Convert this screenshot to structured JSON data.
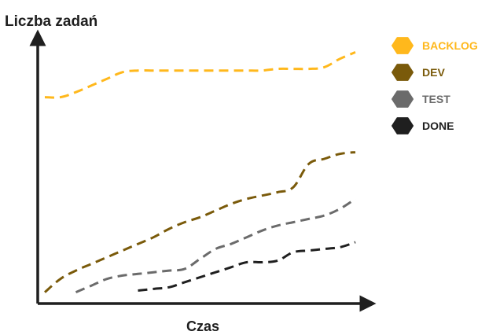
{
  "chart_data": {
    "type": "line",
    "title": "",
    "ylabel": "Liczba zadań",
    "xlabel": "Czas",
    "x": [
      0,
      1,
      2,
      3,
      4,
      5,
      6,
      7,
      8,
      9,
      10,
      11,
      12,
      13,
      14,
      15,
      16,
      17,
      18,
      19,
      20
    ],
    "xlim": [
      0,
      20
    ],
    "ylim": [
      0,
      150
    ],
    "grid": false,
    "legend_position": "right",
    "line_style": "dashed",
    "series": [
      {
        "name": "BACKLOG",
        "color": "#FFB81C",
        "values": [
          120,
          120,
          123,
          127,
          131,
          135,
          136,
          136,
          136,
          136,
          136,
          136,
          136,
          136,
          136,
          137,
          137,
          137,
          138,
          143,
          147
        ]
      },
      {
        "name": "DEV",
        "color": "#7A5A0A",
        "values": [
          3,
          11,
          16,
          20,
          24,
          28,
          32,
          36,
          41,
          45,
          48,
          52,
          56,
          59,
          61,
          63,
          66,
          80,
          83,
          86,
          87
        ]
      },
      {
        "name": "TEST",
        "color": "#6B6B6B",
        "values": [
          null,
          null,
          3,
          7,
          11,
          13,
          14,
          15,
          16,
          17,
          23,
          29,
          32,
          36,
          40,
          43,
          45,
          47,
          49,
          53,
          59
        ]
      },
      {
        "name": "DONE",
        "color": "#1F1F1F",
        "values": [
          null,
          null,
          null,
          null,
          null,
          null,
          4,
          5,
          6,
          9,
          12,
          15,
          18,
          21,
          21,
          22,
          27,
          28,
          29,
          30,
          33
        ]
      }
    ]
  }
}
